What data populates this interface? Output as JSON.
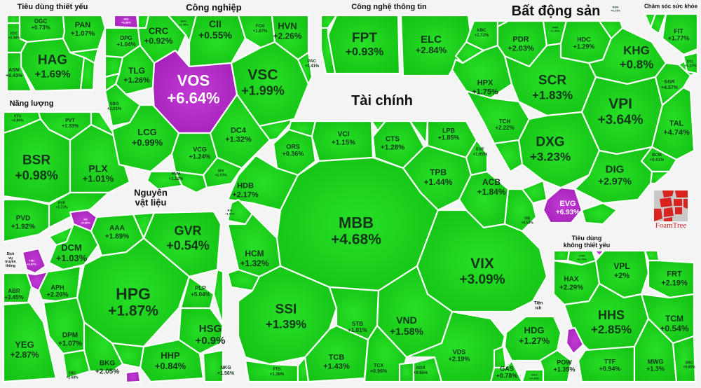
{
  "chart_data": {
    "type": "treemap",
    "title": "",
    "colors": {
      "up": "#1ed21e",
      "ceiling": "#b429c8",
      "gap": "#ffffff",
      "background": "#f4f4f4"
    },
    "groups": [
      {
        "name": "Tiêu dùng thiết yếu",
        "items": [
          {
            "ticker": "HAG",
            "change": 1.69
          },
          {
            "ticker": "PAN",
            "change": 1.07
          },
          {
            "ticker": "OGC",
            "change": 0.73
          },
          {
            "ticker": "KDC",
            "change": 0.38
          },
          {
            "ticker": "ASM",
            "change": 0.43
          }
        ]
      },
      {
        "name": "Công nghiệp",
        "items": [
          {
            "ticker": "VOS",
            "change": 6.64,
            "ceiling": true
          },
          {
            "ticker": "VSC",
            "change": 1.99
          },
          {
            "ticker": "CII",
            "change": 0.55
          },
          {
            "ticker": "CRC",
            "change": 0.92
          },
          {
            "ticker": "HVN",
            "change": 2.26
          },
          {
            "ticker": "FCN",
            "change": 1.67
          },
          {
            "ticker": "DPG",
            "change": 1.04
          },
          {
            "ticker": "TLG",
            "change": 1.26
          },
          {
            "ticker": "SBG",
            "change": 2.01
          },
          {
            "ticker": "LCG",
            "change": 0.99
          },
          {
            "ticker": "DC4",
            "change": 1.32
          },
          {
            "ticker": "VCG",
            "change": 1.24
          },
          {
            "ticker": "HVH",
            "change": 1.12
          },
          {
            "ticker": "SHI",
            "change": 1.03
          },
          {
            "ticker": "PAC",
            "change": 0.41
          },
          {
            "ticker": "HID",
            "change": 6.98,
            "ceiling": true
          },
          {
            "ticker": "SKG",
            "change": 2.49
          }
        ]
      },
      {
        "name": "Công nghệ thông tin",
        "items": [
          {
            "ticker": "FPT",
            "change": 0.93
          },
          {
            "ticker": "ELC",
            "change": 2.84
          }
        ]
      },
      {
        "name": "Bất động sản",
        "items": [
          {
            "ticker": "SCR",
            "change": 1.83
          },
          {
            "ticker": "VPI",
            "change": 3.64
          },
          {
            "ticker": "DXG",
            "change": 3.23
          },
          {
            "ticker": "KHG",
            "change": 0.8
          },
          {
            "ticker": "DIG",
            "change": 2.97
          },
          {
            "ticker": "HPX",
            "change": 1.75
          },
          {
            "ticker": "PDR",
            "change": 2.03
          },
          {
            "ticker": "HDC",
            "change": 1.29
          },
          {
            "ticker": "TCH",
            "change": 2.22
          },
          {
            "ticker": "TAL",
            "change": 4.74
          },
          {
            "ticker": "SGR",
            "change": 4.57
          },
          {
            "ticker": "BCM",
            "change": 0.61
          },
          {
            "ticker": "KBC",
            "change": 1.72
          },
          {
            "ticker": "HAR",
            "change": 1.35
          },
          {
            "ticker": "KDH",
            "change": 0.73
          },
          {
            "ticker": "EVG",
            "change": 6.93,
            "ceiling": true
          }
        ]
      },
      {
        "name": "Chăm sóc sức khỏe",
        "items": [
          {
            "ticker": "FIT",
            "change": 1.77
          },
          {
            "ticker": "DCL",
            "change": 1.22
          }
        ]
      },
      {
        "name": "Năng lượng",
        "items": [
          {
            "ticker": "BSR",
            "change": 0.98
          },
          {
            "ticker": "PLX",
            "change": 1.01
          },
          {
            "ticker": "PVD",
            "change": 1.92
          },
          {
            "ticker": "PVT",
            "change": 1.33
          },
          {
            "ticker": "VTO",
            "change": 0.86
          },
          {
            "ticker": "PVP",
            "change": 1.73
          }
        ]
      },
      {
        "name": "Tài chính",
        "items": [
          {
            "ticker": "MBB",
            "change": 4.68
          },
          {
            "ticker": "VIX",
            "change": 3.09
          },
          {
            "ticker": "SSI",
            "change": 1.39
          },
          {
            "ticker": "VND",
            "change": 1.58
          },
          {
            "ticker": "HDB",
            "change": 2.17
          },
          {
            "ticker": "HCM",
            "change": 1.32
          },
          {
            "ticker": "TPB",
            "change": 1.44
          },
          {
            "ticker": "ACB",
            "change": 1.84
          },
          {
            "ticker": "VCI",
            "change": 1.15
          },
          {
            "ticker": "CTS",
            "change": 1.28
          },
          {
            "ticker": "LPB",
            "change": 1.85
          },
          {
            "ticker": "ORS",
            "change": 0.36
          },
          {
            "ticker": "STB",
            "change": 1.01
          },
          {
            "ticker": "TCB",
            "change": 1.43
          },
          {
            "ticker": "VDS",
            "change": 2.19
          },
          {
            "ticker": "TCX",
            "change": 0.96
          },
          {
            "ticker": "AGR",
            "change": 0.65
          },
          {
            "ticker": "FTS",
            "change": 1.38
          },
          {
            "ticker": "EVF",
            "change": 1.65
          },
          {
            "ticker": "VIB",
            "change": 0.53
          },
          {
            "ticker": "BSI",
            "change": 1.61
          }
        ]
      },
      {
        "name": "Nguyên vật liệu",
        "items": [
          {
            "ticker": "HPG",
            "change": 1.87
          },
          {
            "ticker": "GVR",
            "change": 0.54
          },
          {
            "ticker": "DCM",
            "change": 1.03
          },
          {
            "ticker": "HSG",
            "change": 0.9
          },
          {
            "ticker": "AAA",
            "change": 1.89
          },
          {
            "ticker": "DPM",
            "change": 1.07
          },
          {
            "ticker": "APH",
            "change": 2.26
          },
          {
            "ticker": "HHP",
            "change": 0.84
          },
          {
            "ticker": "BKG",
            "change": 2.05
          },
          {
            "ticker": "PLP",
            "change": 5.04
          },
          {
            "ticker": "NKG",
            "change": 1.56
          },
          {
            "ticker": "TRC",
            "change": 2.68
          },
          {
            "ticker": "HII",
            "change": 6.89,
            "ceiling": true
          }
        ]
      },
      {
        "name": "Dịch vụ truyền thông",
        "items": [
          {
            "ticker": "YEG",
            "change": 2.87
          },
          {
            "ticker": "ABR",
            "change": 3.45
          },
          {
            "ticker": "TMI",
            "change": 6.87,
            "ceiling": true
          }
        ]
      },
      {
        "name": "Tiêu dùng không thiết yếu",
        "items": [
          {
            "ticker": "HHS",
            "change": 2.85
          },
          {
            "ticker": "VPL",
            "change": 2
          },
          {
            "ticker": "FRT",
            "change": 2.19
          },
          {
            "ticker": "HAX",
            "change": 2.29
          },
          {
            "ticker": "TCM",
            "change": 0.54
          },
          {
            "ticker": "TTF",
            "change": 0.94
          },
          {
            "ticker": "MWG",
            "change": 1.3
          },
          {
            "ticker": "CSM",
            "change": 0.75
          },
          {
            "ticker": "DRC",
            "change": 0.65
          }
        ]
      },
      {
        "name": "Tiện ích",
        "items": [
          {
            "ticker": "HDG",
            "change": 1.27
          },
          {
            "ticker": "GAS",
            "change": 0.78
          },
          {
            "ticker": "POW",
            "change": 1.35
          },
          {
            "ticker": "GEG",
            "change": 0.25
          }
        ]
      }
    ]
  },
  "groups": {
    "g1": "Tiêu dùng thiết yếu",
    "g2": "Công nghiệp",
    "g3": "Công nghệ thông tin",
    "g4": "Bất động sản",
    "g5": "Chăm sóc sức khỏe",
    "g6": "Năng lượng",
    "g7": "Tài chính",
    "g8a": "Nguyên",
    "g8b": "vật liệu",
    "g9a": "Dịch",
    "g9b": "vụ",
    "g9c": "truyền",
    "g9d": "thông",
    "g10a": "Tiêu dùng",
    "g10b": "không thiết yếu",
    "g11a": "Tiện",
    "g11b": "ích"
  },
  "logo": {
    "text": "FoamTree"
  },
  "t": {
    "HAG": [
      "HAG",
      "+1.69%"
    ],
    "PAN": [
      "PAN",
      "+1.07%"
    ],
    "OGC": [
      "OGC",
      "+0.73%"
    ],
    "KDC": [
      "KDC",
      "+0.38%"
    ],
    "ASM": [
      "ASM",
      "+0.43%"
    ],
    "VOS": [
      "VOS",
      "+6.64%"
    ],
    "VSC": [
      "VSC",
      "+1.99%"
    ],
    "CII": [
      "CII",
      "+0.55%"
    ],
    "CRC": [
      "CRC",
      "+0.92%"
    ],
    "HVN": [
      "HVN",
      "+2.26%"
    ],
    "FCN": [
      "FCN",
      "+1.67%"
    ],
    "DPG": [
      "DPG",
      "+1.04%"
    ],
    "TLG": [
      "TLG",
      "+1.26%"
    ],
    "SBG": [
      "SBG",
      "+2.01%"
    ],
    "LCG": [
      "LCG",
      "+0.99%"
    ],
    "DC4": [
      "DC4",
      "+1.32%"
    ],
    "VCG": [
      "VCG",
      "+1.24%"
    ],
    "HVH": [
      "HVH",
      "+1.12%"
    ],
    "SHI": [
      "SHI",
      "+1.03%"
    ],
    "PAC": [
      "PAC",
      "+0.41%"
    ],
    "HID": [
      "HID",
      "+6.98%"
    ],
    "SKG": [
      "SKG",
      "+2.49%"
    ],
    "FPT": [
      "FPT",
      "+0.93%"
    ],
    "ELC": [
      "ELC",
      "+2.84%"
    ],
    "SCR": [
      "SCR",
      "+1.83%"
    ],
    "VPI": [
      "VPI",
      "+3.64%"
    ],
    "DXG": [
      "DXG",
      "+3.23%"
    ],
    "KHG": [
      "KHG",
      "+0.8%"
    ],
    "DIG": [
      "DIG",
      "+2.97%"
    ],
    "HPX": [
      "HPX",
      "+1.75%"
    ],
    "PDR": [
      "PDR",
      "+2.03%"
    ],
    "HDC": [
      "HDC",
      "+1.29%"
    ],
    "TCH": [
      "TCH",
      "+2.22%"
    ],
    "TAL": [
      "TAL",
      "+4.74%"
    ],
    "SGR": [
      "SGR",
      "+4.57%"
    ],
    "BCM": [
      "BCM",
      "+0.61%"
    ],
    "KBC": [
      "KBC",
      "+1.72%"
    ],
    "HAR": [
      "HAR",
      "+1.35%"
    ],
    "KDH": [
      "KDH",
      "+0.73%"
    ],
    "EVG": [
      "EVG",
      "+6.93%"
    ],
    "FIT": [
      "FIT",
      "+1.77%"
    ],
    "DCL": [
      "DCL",
      "+1.22%"
    ],
    "BSR": [
      "BSR",
      "+0.98%"
    ],
    "PLX": [
      "PLX",
      "+1.01%"
    ],
    "PVD": [
      "PVD",
      "+1.92%"
    ],
    "PVT": [
      "PVT",
      "+1.33%"
    ],
    "VTO": [
      "VTO",
      "+0.86%"
    ],
    "PVP": [
      "PVP",
      "+1.73%"
    ],
    "MBB": [
      "MBB",
      "+4.68%"
    ],
    "VIX": [
      "VIX",
      "+3.09%"
    ],
    "SSI": [
      "SSI",
      "+1.39%"
    ],
    "VND": [
      "VND",
      "+1.58%"
    ],
    "HDB": [
      "HDB",
      "+2.17%"
    ],
    "HCM": [
      "HCM",
      "+1.32%"
    ],
    "TPB": [
      "TPB",
      "+1.44%"
    ],
    "ACB": [
      "ACB",
      "+1.84%"
    ],
    "VCI": [
      "VCI",
      "+1.15%"
    ],
    "CTS": [
      "CTS",
      "+1.28%"
    ],
    "LPB": [
      "LPB",
      "+1.85%"
    ],
    "ORS": [
      "ORS",
      "+0.36%"
    ],
    "STB": [
      "STB",
      "+1.01%"
    ],
    "TCB": [
      "TCB",
      "+1.43%"
    ],
    "VDS": [
      "VDS",
      "+2.19%"
    ],
    "TCX": [
      "TCX",
      "+0.96%"
    ],
    "AGR": [
      "AGR",
      "+0.65%"
    ],
    "FTS": [
      "FTS",
      "+1.38%"
    ],
    "EVF": [
      "EVF",
      "+1.65%"
    ],
    "VIB": [
      "VIB",
      "+0.53%"
    ],
    "BSI": [
      "BSI",
      "+1.61%"
    ],
    "HPG": [
      "HPG",
      "+1.87%"
    ],
    "GVR": [
      "GVR",
      "+0.54%"
    ],
    "DCM": [
      "DCM",
      "+1.03%"
    ],
    "HSG": [
      "HSG",
      "+0.9%"
    ],
    "AAA": [
      "AAA",
      "+1.89%"
    ],
    "DPM": [
      "DPM",
      "+1.07%"
    ],
    "APH": [
      "APH",
      "+2.26%"
    ],
    "HHP": [
      "HHP",
      "+0.84%"
    ],
    "BKG": [
      "BKG",
      "+2.05%"
    ],
    "PLP": [
      "PLP",
      "+5.04%"
    ],
    "NKG": [
      "NKG",
      "+1.56%"
    ],
    "TRC": [
      "TRC",
      "+2.68%"
    ],
    "HII": [
      "HII",
      "+6.89%"
    ],
    "YEG": [
      "YEG",
      "+2.87%"
    ],
    "ABR": [
      "ABR",
      "+3.45%"
    ],
    "TMI": [
      "TMI",
      "+6.87%"
    ],
    "HHS": [
      "HHS",
      "+2.85%"
    ],
    "VPL": [
      "VPL",
      "+2%"
    ],
    "FRT": [
      "FRT",
      "+2.19%"
    ],
    "HAX": [
      "HAX",
      "+2.29%"
    ],
    "TCM": [
      "TCM",
      "+0.54%"
    ],
    "TTF": [
      "TTF",
      "+0.94%"
    ],
    "MWG": [
      "MWG",
      "+1.3%"
    ],
    "CSM": [
      "CSM",
      "+0.75%"
    ],
    "DRC": [
      "DRC",
      "+0.65%"
    ],
    "HDG": [
      "HDG",
      "+1.27%"
    ],
    "GAS": [
      "GAS",
      "+0.78%"
    ],
    "POW": [
      "POW",
      "+1.35%"
    ],
    "GEG": [
      "GEG",
      "+0.25%"
    ]
  }
}
